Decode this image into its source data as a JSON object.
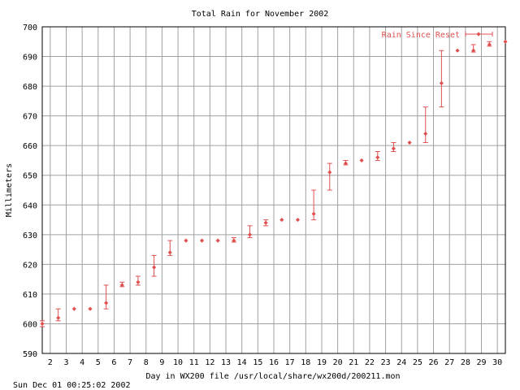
{
  "chart_data": {
    "type": "scatter",
    "title": "Total Rain for November 2002",
    "xlabel": "Day in WX200 file /usr/local/share/wx200d/200211.mon",
    "ylabel": "Millimeters",
    "footer": "Sun Dec 01 00:25:02 2002",
    "xlim": [
      1.5,
      30.5
    ],
    "ylim": [
      590,
      700
    ],
    "x_ticks": [
      2,
      3,
      4,
      5,
      6,
      7,
      8,
      9,
      10,
      11,
      12,
      13,
      14,
      15,
      16,
      17,
      18,
      19,
      20,
      21,
      22,
      23,
      24,
      25,
      26,
      27,
      28,
      29,
      30
    ],
    "y_ticks": [
      590,
      600,
      610,
      620,
      630,
      640,
      650,
      660,
      670,
      680,
      690,
      700
    ],
    "grid": true,
    "legend_position": "top-right",
    "series": [
      {
        "name": "Rain Since Reset",
        "color": "#e05050",
        "points": [
          {
            "x": 1.5,
            "y": 600,
            "lo": 599,
            "hi": 601
          },
          {
            "x": 2.5,
            "y": 602,
            "lo": 601,
            "hi": 605
          },
          {
            "x": 3.5,
            "y": 605,
            "lo": 605,
            "hi": 605
          },
          {
            "x": 4.5,
            "y": 605,
            "lo": 605,
            "hi": 605
          },
          {
            "x": 5.5,
            "y": 607,
            "lo": 605,
            "hi": 613
          },
          {
            "x": 6.5,
            "y": 613,
            "lo": 612.5,
            "hi": 614
          },
          {
            "x": 7.5,
            "y": 614,
            "lo": 613,
            "hi": 616
          },
          {
            "x": 8.5,
            "y": 619,
            "lo": 616,
            "hi": 623
          },
          {
            "x": 9.5,
            "y": 624,
            "lo": 623,
            "hi": 628
          },
          {
            "x": 10.5,
            "y": 628,
            "lo": 628,
            "hi": 628
          },
          {
            "x": 11.5,
            "y": 628,
            "lo": 628,
            "hi": 628
          },
          {
            "x": 12.5,
            "y": 628,
            "lo": 628,
            "hi": 628
          },
          {
            "x": 13.5,
            "y": 628,
            "lo": 627.5,
            "hi": 629
          },
          {
            "x": 14.5,
            "y": 630,
            "lo": 629,
            "hi": 633
          },
          {
            "x": 15.5,
            "y": 634,
            "lo": 633,
            "hi": 635
          },
          {
            "x": 16.5,
            "y": 635,
            "lo": 635,
            "hi": 635
          },
          {
            "x": 17.5,
            "y": 635,
            "lo": 635,
            "hi": 635
          },
          {
            "x": 18.5,
            "y": 637,
            "lo": 635,
            "hi": 645
          },
          {
            "x": 19.5,
            "y": 651,
            "lo": 645,
            "hi": 654
          },
          {
            "x": 20.5,
            "y": 654,
            "lo": 653.5,
            "hi": 655
          },
          {
            "x": 21.5,
            "y": 655,
            "lo": 655,
            "hi": 655
          },
          {
            "x": 22.5,
            "y": 656,
            "lo": 655,
            "hi": 658
          },
          {
            "x": 23.5,
            "y": 659,
            "lo": 658,
            "hi": 661
          },
          {
            "x": 24.5,
            "y": 661,
            "lo": 661,
            "hi": 661
          },
          {
            "x": 25.5,
            "y": 664,
            "lo": 661,
            "hi": 673
          },
          {
            "x": 26.5,
            "y": 681,
            "lo": 673,
            "hi": 692
          },
          {
            "x": 27.5,
            "y": 692,
            "lo": 692,
            "hi": 692
          },
          {
            "x": 28.5,
            "y": 692,
            "lo": 691.5,
            "hi": 694
          },
          {
            "x": 29.5,
            "y": 694,
            "lo": 693.5,
            "hi": 695
          },
          {
            "x": 30.5,
            "y": 695,
            "lo": 695,
            "hi": 695
          }
        ]
      }
    ]
  }
}
